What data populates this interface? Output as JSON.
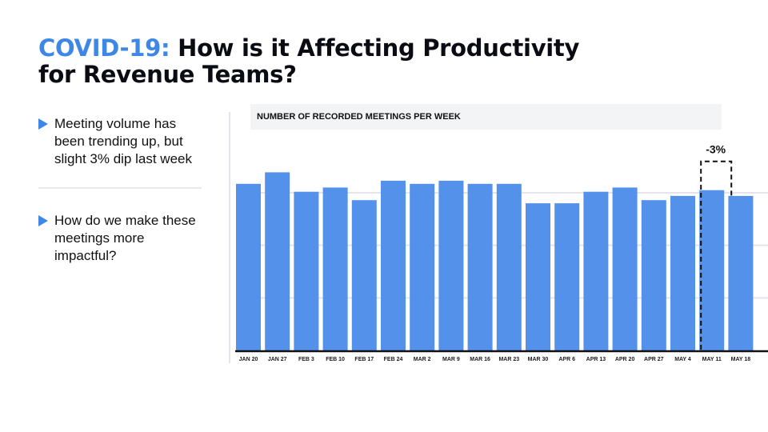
{
  "slide": {
    "title_accent": "COVID-19:",
    "title_rest": " How is it Affecting Productivity",
    "title_line2": "for Revenue Teams?",
    "bullets": [
      "Meeting volume has been trending up, but slight 3% dip last week",
      "How do we make these meetings more impactful?"
    ]
  },
  "chart_data": {
    "type": "bar",
    "title": "NUMBER OF RECORDED MEETINGS PER WEEK",
    "categories": [
      "JAN 20",
      "JAN 27",
      "FEB 3",
      "FEB 10",
      "FEB 17",
      "FEB 24",
      "MAR 2",
      "MAR 9",
      "MAR 16",
      "MAR 23",
      "MAR 30",
      "APR 6",
      "APR 13",
      "APR 20",
      "APR 27",
      "MAY 4",
      "MAY 11",
      "MAY 18"
    ],
    "values": [
      3.17,
      3.39,
      3.02,
      3.1,
      2.86,
      3.23,
      3.17,
      3.23,
      3.17,
      3.17,
      2.8,
      2.8,
      3.02,
      3.1,
      2.86,
      2.94,
      3.05,
      2.94
    ],
    "ylim": [
      0,
      3.7
    ],
    "gridlines": [
      1,
      2,
      3
    ],
    "grid": true,
    "bar_color": "#5491ea",
    "annotation": {
      "text": "-3%",
      "category": "MAY 11"
    }
  }
}
